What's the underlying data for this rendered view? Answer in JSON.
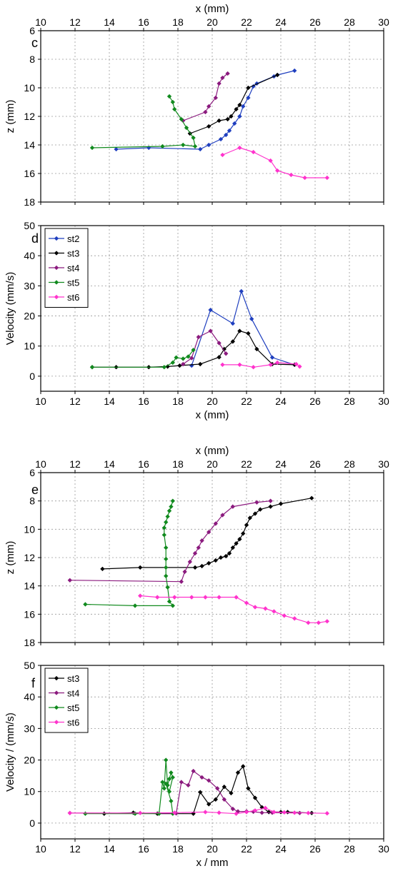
{
  "colors": {
    "st2": "#1f3fbf",
    "st3": "#000000",
    "st4": "#8b1a7e",
    "st5": "#118a1e",
    "st6": "#ff33cc",
    "grid": "#9a9a9a"
  },
  "chart_data": [
    {
      "panel": "c",
      "type": "line",
      "xlabel": "x (mm)",
      "ylabel": "z (mm)",
      "xlim": [
        10,
        30
      ],
      "ylim": [
        6,
        18
      ],
      "y_inverted": true,
      "x_ticks": [
        10,
        12,
        14,
        16,
        18,
        20,
        22,
        24,
        26,
        28,
        30
      ],
      "y_ticks": [
        6,
        8,
        10,
        12,
        14,
        16,
        18
      ],
      "grid": true,
      "legend": null,
      "series": [
        {
          "key": "st2",
          "x": [
            24.8,
            23.8,
            23.6,
            22.6,
            22.4,
            22.1,
            21.8,
            21.6,
            21.3,
            21.0,
            20.8,
            20.5,
            19.8,
            19.3,
            16.3,
            14.4
          ],
          "y": [
            8.8,
            9.1,
            9.2,
            9.7,
            9.9,
            10.7,
            11.3,
            12.0,
            12.5,
            13.0,
            13.3,
            13.6,
            14.0,
            14.3,
            14.2,
            14.3
          ]
        },
        {
          "key": "st3",
          "x": [
            23.8,
            22.1,
            21.6,
            21.4,
            21.1,
            20.9,
            20.4,
            19.8,
            18.7
          ],
          "y": [
            9.1,
            10.0,
            11.2,
            11.5,
            12.0,
            12.2,
            12.3,
            12.7,
            13.2
          ]
        },
        {
          "key": "st4",
          "x": [
            20.9,
            20.6,
            20.4,
            20.2,
            19.8,
            19.6,
            18.3
          ],
          "y": [
            9.0,
            9.3,
            9.7,
            10.7,
            11.3,
            11.7,
            12.3
          ]
        },
        {
          "key": "st5",
          "x": [
            17.5,
            17.7,
            17.8,
            18.2,
            18.5,
            18.9,
            19.0,
            18.3,
            17.1,
            13.0
          ],
          "y": [
            10.6,
            11.0,
            11.5,
            12.2,
            12.8,
            13.5,
            14.1,
            14.0,
            14.1,
            14.2
          ]
        },
        {
          "key": "st6",
          "x": [
            20.6,
            21.6,
            22.4,
            23.4,
            23.8,
            24.6,
            25.4,
            26.7
          ],
          "y": [
            14.7,
            14.2,
            14.5,
            15.1,
            15.8,
            16.1,
            16.3,
            16.3
          ]
        }
      ]
    },
    {
      "panel": "d",
      "type": "line",
      "xlabel": "x (mm)",
      "ylabel": "Velocity (mm/s)",
      "xlim": [
        10,
        30
      ],
      "ylim": [
        -5,
        50
      ],
      "x_ticks": [
        10,
        12,
        14,
        16,
        18,
        20,
        22,
        24,
        26,
        28,
        30
      ],
      "y_ticks": [
        0,
        10,
        20,
        30,
        40,
        50
      ],
      "grid": true,
      "legend": "top-left",
      "series": [
        {
          "key": "st2",
          "name": "st2",
          "x": [
            18.8,
            19.9,
            21.2,
            21.7,
            22.3,
            23.5,
            24.8
          ],
          "y": [
            3.5,
            22,
            17.5,
            28.2,
            19,
            6.2,
            3.8
          ]
        },
        {
          "key": "st3",
          "name": "st3",
          "x": [
            13.0,
            14.4,
            16.3,
            17.4,
            18.1,
            19.3,
            20.4,
            20.7,
            21.2,
            21.6,
            22.1,
            22.6,
            23.5,
            24.8
          ],
          "y": [
            3,
            3,
            3,
            3.2,
            3.5,
            4,
            6.3,
            9,
            11.5,
            15,
            14.2,
            9,
            4,
            3.8
          ]
        },
        {
          "key": "st4",
          "name": "st4",
          "x": [
            18.3,
            18.8,
            19.2,
            19.9,
            20.4,
            20.8
          ],
          "y": [
            4,
            6,
            13,
            15,
            11,
            7.5
          ]
        },
        {
          "key": "st5",
          "name": "st5",
          "x": [
            13.0,
            17.2,
            17.7,
            17.9,
            18.3,
            18.6,
            18.9
          ],
          "y": [
            3,
            3,
            4.5,
            6.2,
            5.8,
            6.5,
            8.7
          ]
        },
        {
          "key": "st6",
          "name": "st6",
          "x": [
            20.6,
            21.6,
            22.4,
            23.4,
            23.8,
            24.9,
            25.1
          ],
          "y": [
            3.8,
            3.8,
            3,
            3.8,
            4.5,
            4,
            3.2
          ]
        }
      ]
    },
    {
      "panel": "e",
      "type": "line",
      "xlabel": "x (mm)",
      "ylabel": "z (mm)",
      "xlim": [
        10,
        30
      ],
      "ylim": [
        6,
        18
      ],
      "y_inverted": true,
      "x_ticks": [
        10,
        12,
        14,
        16,
        18,
        20,
        22,
        24,
        26,
        28,
        30
      ],
      "y_ticks": [
        6,
        8,
        10,
        12,
        14,
        16,
        18
      ],
      "grid": true,
      "legend": null,
      "series": [
        {
          "key": "st3",
          "x": [
            25.8,
            24.0,
            23.4,
            22.8,
            22.5,
            22.2,
            22.0,
            21.8,
            21.6,
            21.4,
            21.2,
            21.0,
            20.8,
            20.5,
            20.2,
            19.8,
            19.4,
            19.0,
            15.8,
            13.6
          ],
          "y": [
            7.8,
            8.2,
            8.4,
            8.6,
            8.9,
            9.2,
            9.7,
            10.3,
            10.7,
            11.0,
            11.3,
            11.7,
            11.9,
            12.0,
            12.2,
            12.4,
            12.6,
            12.7,
            12.7,
            12.8
          ]
        },
        {
          "key": "st4",
          "x": [
            23.4,
            22.6,
            21.2,
            20.6,
            20.2,
            19.8,
            19.4,
            19.2,
            19.0,
            18.7,
            18.4,
            18.2,
            11.7
          ],
          "y": [
            8.0,
            8.1,
            8.4,
            9.0,
            9.6,
            10.2,
            10.8,
            11.3,
            11.7,
            12.3,
            13.0,
            13.7,
            13.6
          ]
        },
        {
          "key": "st5",
          "x": [
            17.7,
            17.6,
            17.5,
            17.4,
            17.3,
            17.2,
            17.2,
            17.3,
            17.3,
            17.3,
            17.3,
            17.4,
            17.5,
            17.7,
            15.5,
            12.6
          ],
          "y": [
            8.0,
            8.4,
            8.7,
            9.1,
            9.5,
            9.9,
            10.4,
            11.3,
            12.1,
            12.7,
            13.3,
            14.1,
            15.1,
            15.4,
            15.4,
            15.3
          ]
        },
        {
          "key": "st6",
          "x": [
            15.8,
            16.8,
            17.8,
            18.8,
            19.6,
            20.4,
            21.4,
            22.0,
            22.5,
            23.1,
            23.6,
            24.2,
            24.8,
            25.6,
            26.2,
            26.7
          ],
          "y": [
            14.7,
            14.8,
            14.8,
            14.8,
            14.8,
            14.8,
            14.8,
            15.2,
            15.5,
            15.6,
            15.8,
            16.1,
            16.3,
            16.6,
            16.6,
            16.5
          ]
        }
      ]
    },
    {
      "panel": "f",
      "type": "line",
      "xlabel": "x / mm",
      "ylabel": "Velocity / (mm/s)",
      "xlim": [
        10,
        30
      ],
      "ylim": [
        -5,
        50
      ],
      "x_ticks": [
        10,
        12,
        14,
        16,
        18,
        20,
        22,
        24,
        26,
        28,
        30
      ],
      "y_ticks": [
        0,
        10,
        20,
        30,
        40,
        50
      ],
      "grid": true,
      "legend": "top-left",
      "series": [
        {
          "key": "st3",
          "name": "st3",
          "x": [
            13.7,
            15.4,
            16.8,
            18.9,
            19.3,
            19.8,
            20.2,
            20.7,
            21.1,
            21.5,
            21.8,
            22.1,
            22.5,
            22.9,
            23.3,
            24.0,
            24.4,
            25.8
          ],
          "y": [
            3,
            3.3,
            3,
            3,
            9.8,
            6,
            7.5,
            11.5,
            9.5,
            16,
            18,
            11,
            8,
            5,
            3.5,
            3.5,
            3.5,
            3.2
          ]
        },
        {
          "key": "st4",
          "name": "st4",
          "x": [
            11.7,
            17.9,
            18.2,
            18.6,
            18.9,
            19.4,
            19.8,
            20.3,
            20.7,
            21.2,
            21.5,
            22.0,
            22.4,
            22.9,
            23.5,
            25.1
          ],
          "y": [
            3.2,
            3.1,
            13,
            12,
            16.5,
            14.5,
            13.5,
            11,
            7.5,
            4.5,
            3.7,
            3.7,
            3.6,
            3.3,
            3.3,
            3.2
          ]
        },
        {
          "key": "st5",
          "name": "st5",
          "x": [
            12.6,
            15.5,
            16.9,
            17.1,
            17.2,
            17.3,
            17.4,
            17.5,
            17.6,
            17.7,
            17.5,
            17.3,
            17.6,
            17.7
          ],
          "y": [
            3,
            3,
            3,
            13,
            11,
            20,
            12,
            14,
            16,
            14.5,
            10,
            12.5,
            7,
            3
          ]
        },
        {
          "key": "st6",
          "name": "st6",
          "x": [
            11.7,
            15.8,
            17.8,
            19.6,
            20.4,
            21.4,
            22.0,
            22.5,
            23.1,
            23.6,
            24.2,
            24.8,
            25.6,
            26.7
          ],
          "y": [
            3.2,
            3.2,
            3.3,
            3.5,
            3.3,
            3,
            3.5,
            4,
            4.8,
            3.5,
            3.4,
            3.3,
            3.2,
            3.1
          ]
        }
      ]
    }
  ]
}
